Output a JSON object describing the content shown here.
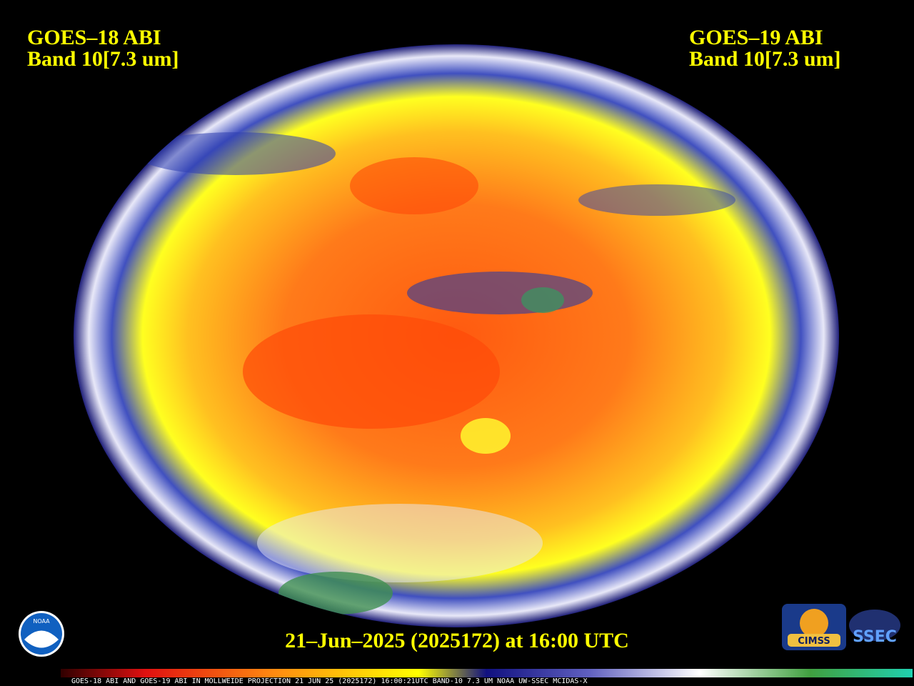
{
  "header": {
    "left": {
      "line1": "GOES–18 ABI",
      "line2": "Band 10[7.3 um]"
    },
    "right": {
      "line1": "GOES–19 ABI",
      "line2": "Band 10[7.3 um]"
    }
  },
  "timestamp": "21–Jun–2025 (2025172) at 16:00 UTC",
  "footer": "GOES-18 ABI AND GOES-19 ABI IN MOLLWEIDE PROJECTION 21 JUN 25 (2025172) 16:00:21UTC BAND-10 7.3 UM NOAA UW-SSEC MCIDAS-X",
  "logos": {
    "noaa": "NOAA",
    "cimss": "CIMSS",
    "ssec": "SSEC"
  }
}
